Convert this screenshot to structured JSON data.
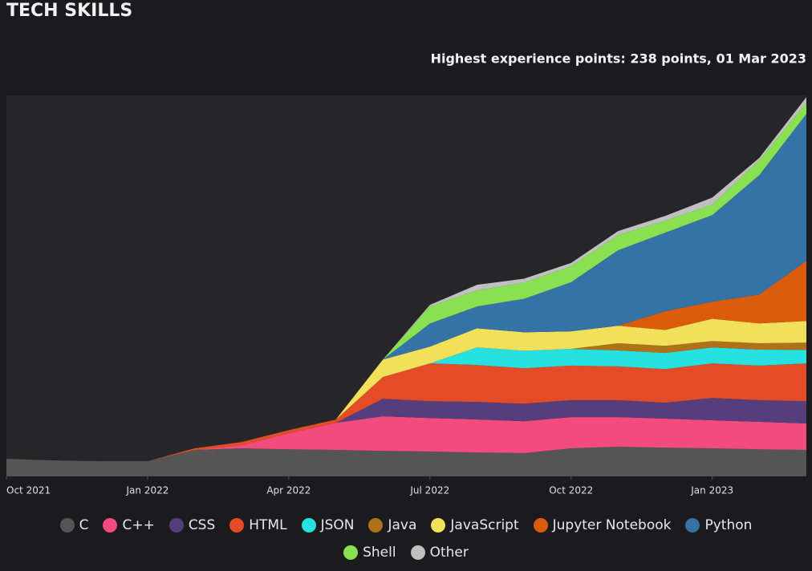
{
  "chart_data": {
    "type": "stacked-area",
    "title": "TECH SKILLS",
    "subtitle": "Highest experience points: 238 points, 01 Mar 2023",
    "x": [
      "2021-10",
      "2021-11",
      "2021-12",
      "2022-01",
      "2022-02",
      "2022-03",
      "2022-04",
      "2022-05",
      "2022-06",
      "2022-07",
      "2022-08",
      "2022-09",
      "2022-10",
      "2022-11",
      "2022-12",
      "2023-01",
      "2023-02",
      "2023-03"
    ],
    "xlim": [
      "2021-10",
      "2023-03"
    ],
    "xticks": [
      {
        "value": "2021-10",
        "label": "Oct 2021"
      },
      {
        "value": "2022-01",
        "label": "Jan 2022"
      },
      {
        "value": "2022-04",
        "label": "Apr 2022"
      },
      {
        "value": "2022-07",
        "label": "Jul 2022"
      },
      {
        "value": "2022-10",
        "label": "Oct 2022"
      },
      {
        "value": "2023-01",
        "label": "Jan 2023"
      }
    ],
    "ylim": [
      0,
      239
    ],
    "series": [
      {
        "name": "C",
        "color": "#555555",
        "values": [
          11,
          10,
          9.5,
          9.5,
          16.6,
          17.6,
          17,
          16.6,
          16,
          15.6,
          15,
          14.6,
          17.6,
          18.6,
          18,
          17.6,
          17,
          16.6
        ]
      },
      {
        "name": "C++",
        "color": "#f34b7d",
        "values": [
          0,
          0,
          0,
          0,
          0,
          2,
          10,
          17,
          21.7,
          21,
          20.7,
          20,
          19.6,
          18.6,
          18.2,
          17.6,
          17.2,
          16.6
        ]
      },
      {
        "name": "CSS",
        "color": "#563d7c",
        "values": [
          0,
          0,
          0,
          0,
          0,
          0,
          0,
          0,
          11,
          10.6,
          11,
          11,
          10.6,
          10.6,
          10,
          14,
          13.6,
          14
        ]
      },
      {
        "name": "HTML",
        "color": "#e34c26",
        "values": [
          0,
          0,
          0,
          0,
          1,
          2,
          2,
          2,
          13.6,
          23.7,
          23.2,
          22.2,
          21.7,
          21.2,
          21.1,
          21.7,
          21.7,
          23.7
        ]
      },
      {
        "name": "JSON",
        "color": "#27e0e0",
        "values": [
          0,
          0,
          0,
          0,
          0,
          0,
          0,
          0,
          0,
          0,
          11,
          11,
          10.5,
          10,
          10.1,
          10,
          10,
          8.5
        ]
      },
      {
        "name": "Java",
        "color": "#b07219",
        "values": [
          0,
          0,
          0,
          0,
          0,
          0,
          0,
          0,
          0,
          0,
          0,
          0,
          0,
          4.5,
          4.5,
          4,
          4,
          4.5
        ]
      },
      {
        "name": "JavaScript",
        "color": "#f1e05a",
        "values": [
          0,
          0,
          0,
          0,
          0,
          0,
          0,
          0,
          11,
          10.5,
          12,
          11.6,
          11,
          11,
          10,
          14,
          12.5,
          13.6
        ]
      },
      {
        "name": "Jupyter Notebook",
        "color": "#da5b0b",
        "values": [
          0,
          0,
          0,
          0,
          0,
          0,
          0,
          0,
          0,
          0,
          0,
          0,
          0,
          0,
          11.7,
          10.7,
          18,
          37.8
        ]
      },
      {
        "name": "Python",
        "color": "#3572a5",
        "values": [
          0,
          0,
          0,
          0,
          0,
          0,
          0,
          0,
          0,
          14.5,
          13.7,
          21,
          30.8,
          47.4,
          49.3,
          54.3,
          75,
          92.1
        ]
      },
      {
        "name": "Shell",
        "color": "#89e051",
        "values": [
          0,
          0,
          0,
          0,
          0,
          0,
          0,
          0,
          0,
          10.7,
          10.1,
          10.1,
          10.1,
          9.5,
          7.5,
          6.6,
          9.3,
          7
        ]
      },
      {
        "name": "Other",
        "color": "#c0c0c0",
        "values": [
          0,
          0,
          0,
          0,
          0,
          0,
          0,
          0,
          0,
          1,
          3.5,
          2.5,
          2,
          2.5,
          3,
          4.4,
          1.5,
          3.5
        ]
      }
    ]
  }
}
